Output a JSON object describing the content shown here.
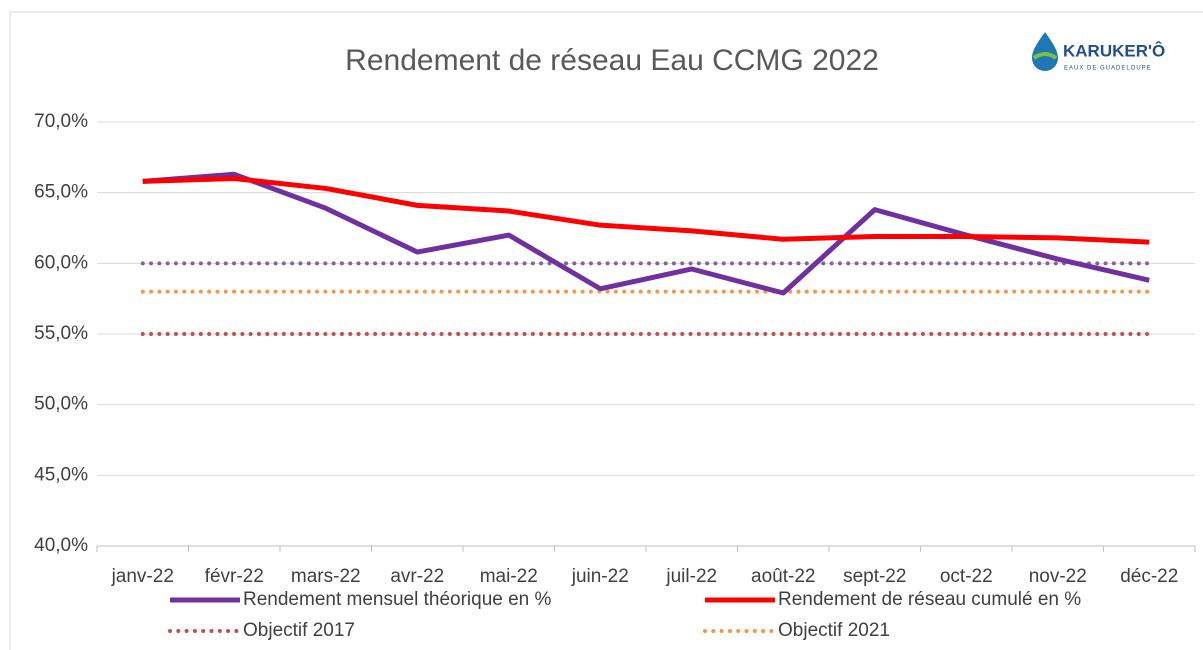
{
  "chart_data": {
    "type": "line",
    "title": "Rendement de réseau Eau CCMG 2022",
    "logo": {
      "name": "KARUKER'Ô",
      "tagline": "EAUX DE GUADELOUPE"
    },
    "categories": [
      "janv-22",
      "févr-22",
      "mars-22",
      "avr-22",
      "mai-22",
      "juin-22",
      "juil-22",
      "août-22",
      "sept-22",
      "oct-22",
      "nov-22",
      "déc-22"
    ],
    "series": [
      {
        "name": "Rendement mensuel théorique en %",
        "color": "#7030a0",
        "style": "solid",
        "values": [
          65.8,
          66.3,
          63.9,
          60.8,
          62.0,
          58.2,
          59.6,
          57.9,
          63.8,
          62.0,
          60.3,
          58.8
        ]
      },
      {
        "name": "Rendement de réseau cumulé en %",
        "color": "#ff0000",
        "style": "solid",
        "values": [
          65.8,
          66.0,
          65.3,
          64.1,
          63.7,
          62.7,
          62.3,
          61.7,
          61.9,
          61.9,
          61.8,
          61.5
        ]
      },
      {
        "name": "Objectif 2017",
        "color": "#c0504d",
        "style": "dot",
        "values": [
          55,
          55,
          55,
          55,
          55,
          55,
          55,
          55,
          55,
          55,
          55,
          55
        ]
      },
      {
        "name": "Objectif 2021",
        "color": "#f79646",
        "style": "dot",
        "values": [
          58,
          58,
          58,
          58,
          58,
          58,
          58,
          58,
          58,
          58,
          58,
          58
        ]
      },
      {
        "color": "#8064a2",
        "style": "dot",
        "values": [
          60,
          60,
          60,
          60,
          60,
          60,
          60,
          60,
          60,
          60,
          60,
          60
        ]
      }
    ],
    "ylim": [
      40,
      70
    ],
    "yticks": [
      {
        "value": 40,
        "label": "40,0%"
      },
      {
        "value": 45,
        "label": "45,0%"
      },
      {
        "value": 50,
        "label": "50,0%"
      },
      {
        "value": 55,
        "label": "55,0%"
      },
      {
        "value": 60,
        "label": "60,0%"
      },
      {
        "value": 65,
        "label": "65,0%"
      },
      {
        "value": 70,
        "label": "70,0%"
      }
    ],
    "grid": true,
    "legend": "bottom"
  }
}
